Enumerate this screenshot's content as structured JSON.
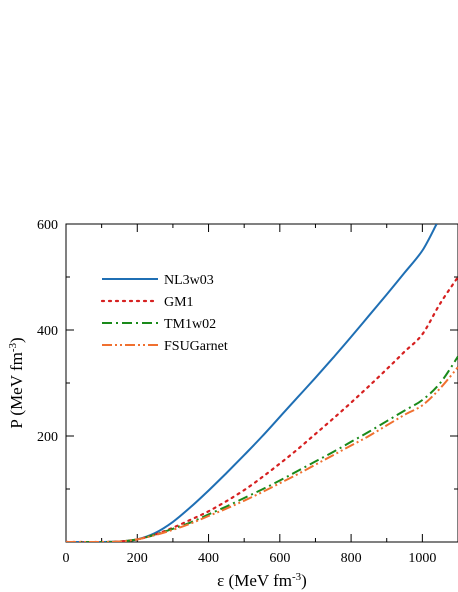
{
  "chart_data": {
    "type": "line",
    "xlabel": "ε (MeV fm",
    "xlabel_sup": "-3",
    "ylabel": "P (MeV fm",
    "ylabel_sup": "-3",
    "xlim": [
      0,
      1100
    ],
    "ylim": [
      0,
      600
    ],
    "x_ticks": [
      0,
      200,
      400,
      600,
      800,
      1000
    ],
    "y_ticks": [
      200,
      400,
      600
    ],
    "legend_position": "top-left",
    "grid": false,
    "series": [
      {
        "name": "NL3w03",
        "color": "#1f6fb4",
        "style": "solid",
        "x": [
          0,
          100,
          150,
          200,
          250,
          300,
          350,
          400,
          450,
          500,
          550,
          600,
          650,
          700,
          750,
          800,
          850,
          900,
          950,
          1000,
          1040
        ],
        "y": [
          0,
          0,
          1,
          5,
          17,
          38,
          66,
          97,
          130,
          164,
          199,
          236,
          273,
          310,
          348,
          387,
          427,
          467,
          508,
          550,
          600
        ]
      },
      {
        "name": "GM1",
        "color": "#d62020",
        "style": "dotted",
        "x": [
          0,
          100,
          150,
          200,
          250,
          300,
          350,
          400,
          450,
          500,
          550,
          600,
          650,
          700,
          750,
          800,
          850,
          900,
          950,
          1000,
          1050,
          1100
        ],
        "y": [
          0,
          0,
          1,
          5,
          14,
          27,
          42,
          58,
          77,
          98,
          122,
          148,
          175,
          204,
          233,
          263,
          294,
          326,
          359,
          392,
          450,
          500
        ]
      },
      {
        "name": "TM1w02",
        "color": "#1a8a1a",
        "style": "dashdot",
        "x": [
          0,
          100,
          150,
          200,
          250,
          300,
          350,
          400,
          450,
          500,
          550,
          600,
          650,
          700,
          750,
          800,
          850,
          900,
          950,
          1000,
          1050,
          1100
        ],
        "y": [
          0,
          0,
          1,
          5,
          14,
          25,
          37,
          52,
          67,
          83,
          99,
          116,
          134,
          152,
          170,
          189,
          208,
          228,
          248,
          268,
          300,
          350
        ]
      },
      {
        "name": "FSUGarnet",
        "color": "#f07030",
        "style": "dashdotdot",
        "x": [
          0,
          100,
          150,
          200,
          250,
          300,
          350,
          400,
          450,
          500,
          550,
          600,
          650,
          700,
          750,
          800,
          850,
          900,
          950,
          1000,
          1050,
          1100
        ],
        "y": [
          0,
          0,
          1,
          5,
          13,
          23,
          35,
          49,
          63,
          78,
          94,
          111,
          128,
          146,
          164,
          182,
          200,
          220,
          240,
          258,
          290,
          330
        ]
      }
    ]
  }
}
